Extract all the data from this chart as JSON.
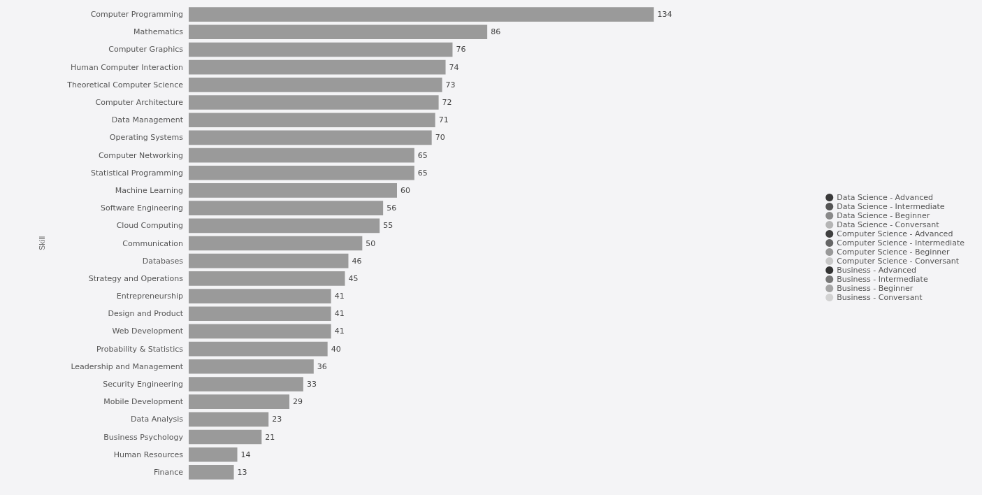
{
  "chart_data": {
    "type": "bar",
    "orientation": "horizontal",
    "stacked": true,
    "ylabel": "Skill",
    "data_labels": true,
    "tick_labels": "y",
    "legend": "right",
    "categories": [
      "Computer Programming",
      "Mathematics",
      "Computer Graphics",
      "Human Computer Interaction",
      "Theoretical Computer Science",
      "Computer Architecture",
      "Data Management",
      "Operating Systems",
      "Computer Networking",
      "Statistical Programming",
      "Machine Learning",
      "Software Engineering",
      "Cloud Computing",
      "Communication",
      "Databases",
      "Strategy and Operations",
      "Entrepreneurship",
      "Design and Product",
      "Web Development",
      "Probability & Statistics",
      "Leadership and Management",
      "Security Engineering",
      "Mobile Development",
      "Data Analysis",
      "Business Psychology",
      "Human Resources",
      "Finance"
    ],
    "series": [
      {
        "name": "Data Science - Advanced",
        "color": "#3a3a3a",
        "values": [
          null,
          null,
          null,
          null,
          null,
          null,
          null,
          null,
          null,
          null,
          null,
          null,
          null,
          null,
          null,
          null,
          null,
          null,
          null,
          null,
          null,
          null,
          null,
          null,
          null,
          null,
          null
        ]
      },
      {
        "name": "Data Science - Intermediate",
        "color": "#555555",
        "values": [
          null,
          null,
          null,
          null,
          null,
          null,
          null,
          null,
          null,
          null,
          null,
          null,
          null,
          null,
          null,
          null,
          null,
          null,
          null,
          null,
          null,
          null,
          null,
          null,
          null,
          null,
          null
        ]
      },
      {
        "name": "Data Science - Beginner",
        "color": "#8a8a8a",
        "values": [
          null,
          null,
          null,
          null,
          null,
          null,
          null,
          null,
          null,
          null,
          null,
          null,
          null,
          null,
          null,
          null,
          null,
          null,
          null,
          null,
          null,
          null,
          null,
          null,
          null,
          null,
          null
        ]
      },
      {
        "name": "Data Science - Conversant",
        "color": "#b5b5b5",
        "values": [
          null,
          null,
          null,
          null,
          null,
          null,
          null,
          null,
          null,
          null,
          null,
          null,
          null,
          null,
          null,
          null,
          null,
          null,
          null,
          null,
          null,
          null,
          null,
          null,
          null,
          null,
          null
        ]
      },
      {
        "name": "Computer Science - Advanced",
        "color": "#404040",
        "values": [
          null,
          null,
          null,
          null,
          null,
          null,
          null,
          null,
          null,
          null,
          null,
          null,
          null,
          null,
          null,
          null,
          null,
          null,
          null,
          null,
          null,
          null,
          null,
          null,
          null,
          null,
          null
        ]
      },
      {
        "name": "Computer Science - Intermediate",
        "color": "#666666",
        "values": [
          null,
          null,
          null,
          null,
          null,
          null,
          null,
          null,
          null,
          null,
          null,
          null,
          null,
          null,
          null,
          null,
          null,
          null,
          null,
          null,
          null,
          null,
          null,
          null,
          null,
          null,
          null
        ]
      },
      {
        "name": "Computer Science - Beginner",
        "color": "#999999",
        "values": [
          null,
          null,
          null,
          null,
          null,
          null,
          null,
          null,
          null,
          null,
          null,
          null,
          null,
          null,
          null,
          null,
          null,
          null,
          null,
          null,
          null,
          null,
          null,
          null,
          null,
          null,
          null
        ]
      },
      {
        "name": "Computer Science - Conversant",
        "color": "#c8c8c8",
        "values": [
          null,
          null,
          null,
          null,
          null,
          null,
          null,
          null,
          null,
          null,
          null,
          null,
          null,
          null,
          null,
          null,
          null,
          null,
          null,
          null,
          null,
          null,
          null,
          null,
          null,
          null,
          null
        ]
      },
      {
        "name": "Business - Advanced",
        "color": "#333333",
        "values": [
          null,
          null,
          null,
          null,
          null,
          null,
          null,
          null,
          null,
          null,
          null,
          null,
          null,
          null,
          null,
          null,
          null,
          null,
          null,
          null,
          null,
          null,
          null,
          null,
          null,
          null,
          null
        ]
      },
      {
        "name": "Business - Intermediate",
        "color": "#777777",
        "values": [
          null,
          null,
          null,
          null,
          null,
          null,
          null,
          null,
          null,
          null,
          null,
          null,
          null,
          null,
          null,
          null,
          null,
          null,
          null,
          null,
          null,
          null,
          null,
          null,
          null,
          null,
          null
        ]
      },
      {
        "name": "Business - Beginner",
        "color": "#a5a5a5",
        "values": [
          null,
          null,
          null,
          null,
          null,
          null,
          null,
          null,
          null,
          null,
          null,
          null,
          null,
          null,
          null,
          null,
          null,
          null,
          null,
          null,
          null,
          null,
          null,
          null,
          null,
          null,
          null
        ]
      },
      {
        "name": "Business - Conversant",
        "color": "#d2d2d2",
        "values": [
          null,
          null,
          null,
          null,
          null,
          null,
          null,
          null,
          null,
          null,
          null,
          null,
          null,
          null,
          null,
          null,
          null,
          null,
          null,
          null,
          null,
          null,
          null,
          null,
          null,
          null,
          null
        ]
      },
      {
        "color": "#9a9a9a",
        "values": [
          134,
          86,
          76,
          74,
          73,
          72,
          71,
          70,
          65,
          65,
          60,
          56,
          55,
          50,
          46,
          45,
          41,
          41,
          41,
          40,
          36,
          33,
          29,
          23,
          21,
          14,
          13
        ]
      }
    ]
  }
}
